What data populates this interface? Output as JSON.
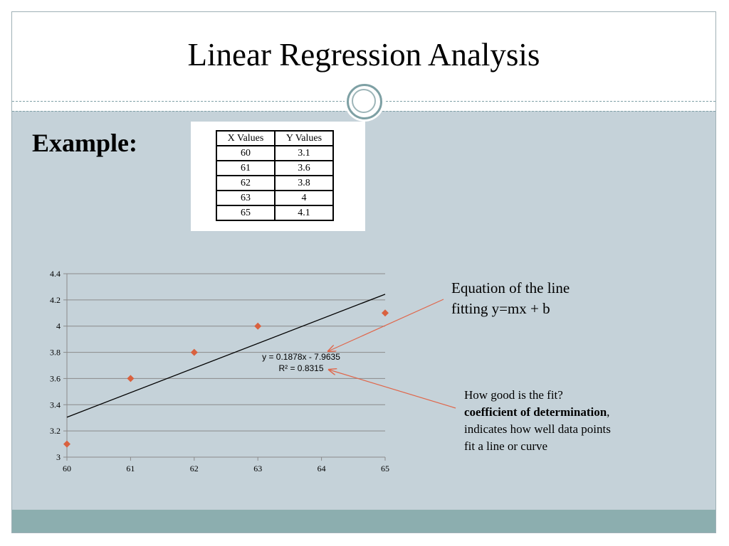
{
  "slide": {
    "title": "Linear Regression Analysis",
    "example_label": "Example:",
    "colors": {
      "background": "#c5d2d9",
      "footer": "#8caeaf",
      "marker": "#d9613f",
      "arrow": "#e0664a"
    }
  },
  "table": {
    "headers": [
      "X Values",
      "Y Values"
    ],
    "rows": [
      [
        "60",
        "3.1"
      ],
      [
        "61",
        "3.6"
      ],
      [
        "62",
        "3.8"
      ],
      [
        "63",
        "4"
      ],
      [
        "65",
        "4.1"
      ]
    ]
  },
  "chart_data": {
    "type": "scatter",
    "x": [
      60,
      61,
      62,
      63,
      65
    ],
    "y": [
      3.1,
      3.6,
      3.8,
      4,
      4.1
    ],
    "xlim": [
      60,
      65
    ],
    "ylim": [
      3,
      4.4
    ],
    "x_ticks": [
      "60",
      "61",
      "62",
      "63",
      "64",
      "65"
    ],
    "y_ticks": [
      "3",
      "3.2",
      "3.4",
      "3.6",
      "3.8",
      "4",
      "4.2",
      "4.4"
    ],
    "grid": "horizontal",
    "trendline": {
      "slope": 0.1878,
      "intercept": -7.9635
    },
    "equation_label": "y = 0.1878x - 7.9635",
    "r2_label": "R² = 0.8315"
  },
  "annotations": {
    "equation_line1": "Equation of the line",
    "equation_line2": "fitting y=mx + b",
    "fit_question": "How good is the fit?",
    "fit_term": "coefficient of determination",
    "fit_comma": ",",
    "fit_line3": "indicates how well data points",
    "fit_line4": "fit a line or curve"
  }
}
